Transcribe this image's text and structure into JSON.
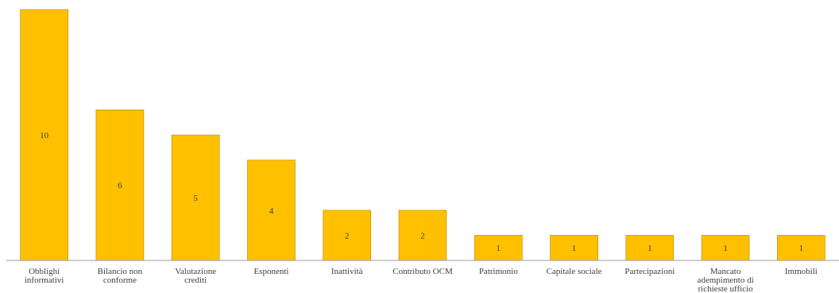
{
  "chart_data": {
    "type": "bar",
    "title": "",
    "xlabel": "",
    "ylabel": "",
    "categories": [
      "Obblighi informativi",
      "Bilancio non conforme",
      "Valutazione crediti",
      "Esponenti",
      "Inattività",
      "Contributo OCM",
      "Patrimonio",
      "Capitale sociale",
      "Partecipazioni",
      "Mancato adempimento di richieste ufficio",
      "Immobili"
    ],
    "category_lines": [
      [
        "Obblighi",
        "informativi"
      ],
      [
        "Bilancio non",
        "conforme"
      ],
      [
        "Valutazione",
        "crediti"
      ],
      [
        "Esponenti"
      ],
      [
        "Inattività"
      ],
      [
        "Contributo OCM"
      ],
      [
        "Patrimonio"
      ],
      [
        "Capitale sociale"
      ],
      [
        "Partecipazioni"
      ],
      [
        "Mancato",
        "adempimento di",
        "richieste ufficio"
      ],
      [
        "Immobili"
      ]
    ],
    "values": [
      10,
      6,
      5,
      4,
      2,
      2,
      1,
      1,
      1,
      1,
      1
    ],
    "ylim": [
      0,
      10
    ],
    "grid": false,
    "legend": "none",
    "bar_color": "#FFC000",
    "bar_edge_color": "#B38600",
    "axis_color": "#9e9e9e",
    "text_color": "#404040"
  }
}
